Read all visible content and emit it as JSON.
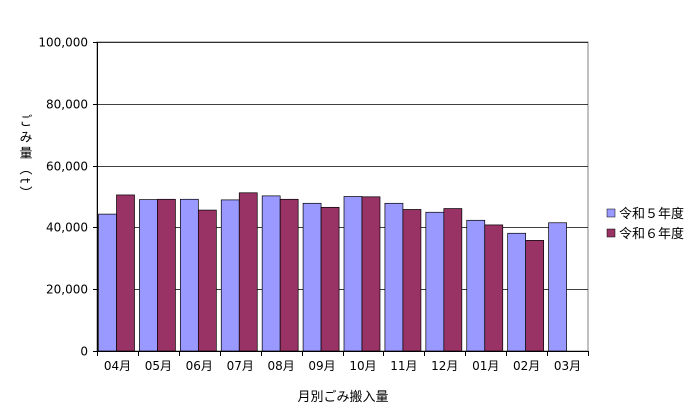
{
  "chart_data": {
    "type": "bar",
    "title": "",
    "xlabel": "月別ごみ搬入量",
    "ylabel": "ごみ量（t）",
    "ylim": [
      0,
      100000
    ],
    "yticks": [
      "0",
      "20,000",
      "40,000",
      "60,000",
      "80,000",
      "100,000"
    ],
    "ytick_values": [
      0,
      20000,
      40000,
      60000,
      80000,
      100000
    ],
    "grid": true,
    "legend_position": "right",
    "categories": [
      "04月",
      "05月",
      "06月",
      "07月",
      "08月",
      "09月",
      "10月",
      "11月",
      "12月",
      "01月",
      "02月",
      "03月"
    ],
    "series": [
      {
        "name": "令和５年度",
        "color": "#9999ff",
        "values": [
          44300,
          49000,
          49100,
          48900,
          50200,
          47800,
          50000,
          47800,
          44900,
          42300,
          38100,
          41500
        ]
      },
      {
        "name": "令和６年度",
        "color": "#993366",
        "values": [
          50500,
          49100,
          45600,
          51200,
          49100,
          46500,
          49900,
          45800,
          46100,
          40800,
          35800,
          null
        ]
      }
    ]
  }
}
